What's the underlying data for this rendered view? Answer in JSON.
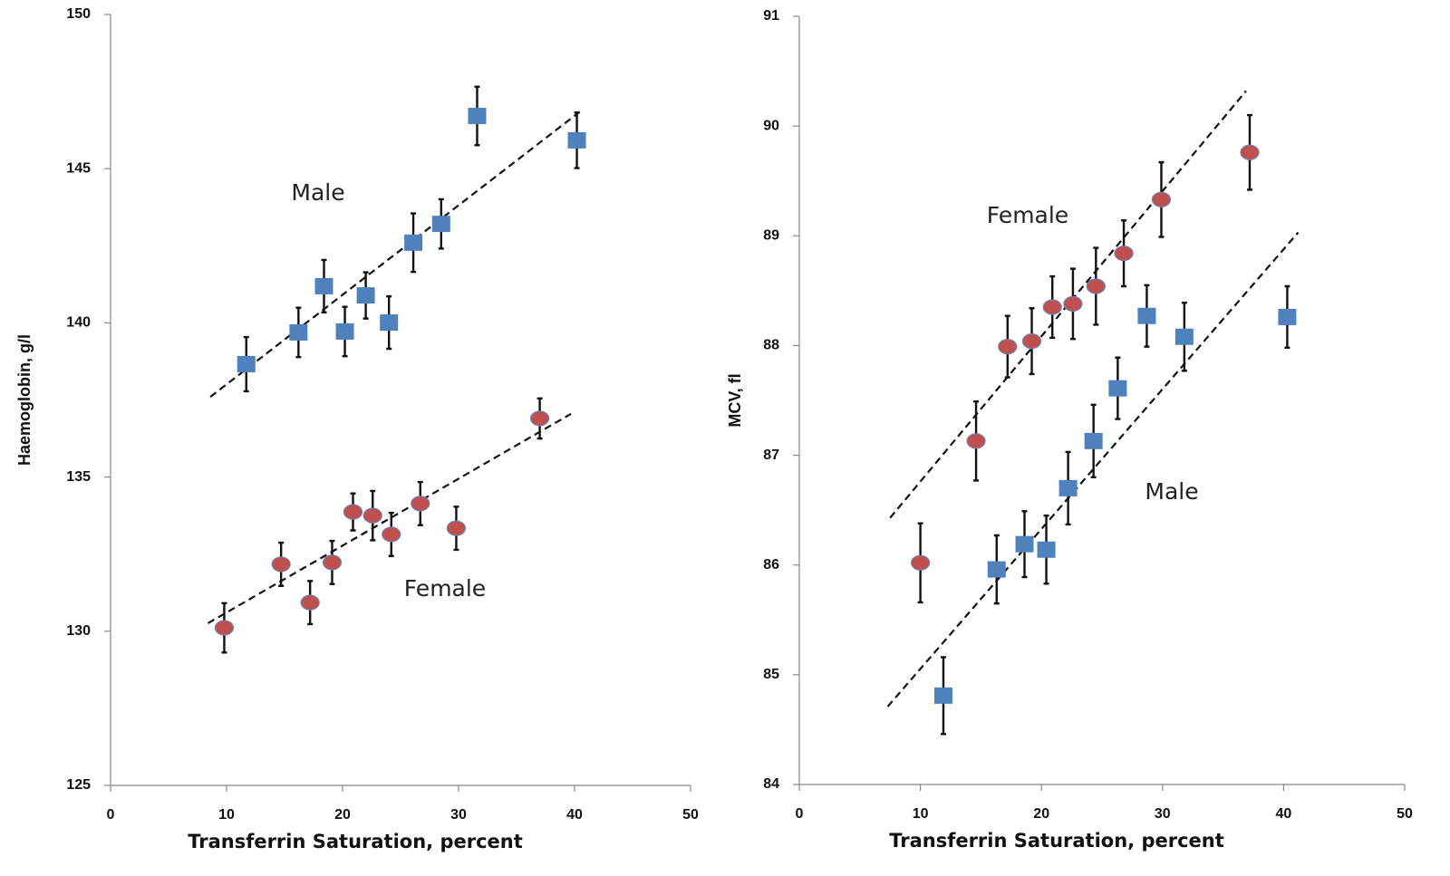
{
  "chart_data": [
    {
      "type": "scatter",
      "x_label": "Transferrin Saturation,  percent",
      "y_label": "Haemoglobin, g/l",
      "xlim": [
        0,
        50
      ],
      "xticks": [
        0,
        10,
        20,
        30,
        40,
        50
      ],
      "ylim": [
        125,
        150
      ],
      "yticks": [
        125,
        130,
        135,
        140,
        145,
        150
      ],
      "series": [
        {
          "name": "Male",
          "color": "#4f81bd",
          "marker": "square",
          "x": [
            11.7,
            16.2,
            18.4,
            20.2,
            22.0,
            24.0,
            26.1,
            28.5,
            31.6,
            40.2
          ],
          "values": [
            138.66,
            139.69,
            141.19,
            139.72,
            140.89,
            140.01,
            142.6,
            143.21,
            146.71,
            145.92
          ],
          "errors": [
            0.88,
            0.8,
            0.85,
            0.8,
            0.75,
            0.85,
            0.95,
            0.8,
            0.95,
            0.9
          ],
          "trend_x": [
            8.6,
            40.5
          ],
          "trend_values": [
            137.6,
            146.86
          ]
        },
        {
          "name": "Female",
          "color": "#c0504d",
          "marker": "circle",
          "x": [
            9.8,
            14.7,
            17.2,
            19.1,
            20.9,
            22.6,
            24.2,
            26.7,
            29.8,
            37.0
          ],
          "values": [
            130.11,
            132.17,
            130.93,
            132.23,
            133.87,
            133.75,
            133.14,
            134.14,
            133.34,
            136.9
          ],
          "errors": [
            0.8,
            0.7,
            0.7,
            0.7,
            0.6,
            0.8,
            0.7,
            0.7,
            0.7,
            0.65
          ],
          "trend_x": [
            8.4,
            39.7
          ],
          "trend_values": [
            130.26,
            137.05
          ]
        }
      ]
    },
    {
      "type": "scatter",
      "x_label": "Transferrin Saturation,  percent",
      "y_label": "MCV, fl",
      "xlim": [
        0,
        50
      ],
      "xticks": [
        0,
        10,
        20,
        30,
        40,
        50
      ],
      "ylim": [
        84,
        91
      ],
      "yticks": [
        84,
        85,
        86,
        87,
        88,
        89,
        90,
        91
      ],
      "series": [
        {
          "name": "Female",
          "color": "#c0504d",
          "marker": "circle",
          "x": [
            10.0,
            14.6,
            17.2,
            19.2,
            20.9,
            22.6,
            24.5,
            26.8,
            29.9,
            37.2
          ],
          "values": [
            86.02,
            87.13,
            87.99,
            88.04,
            88.35,
            88.38,
            88.54,
            88.84,
            89.33,
            89.76
          ],
          "errors": [
            0.36,
            0.36,
            0.28,
            0.3,
            0.28,
            0.32,
            0.35,
            0.3,
            0.34,
            0.34
          ],
          "trend_x": [
            7.5,
            36.9
          ],
          "trend_values": [
            86.43,
            90.32
          ]
        },
        {
          "name": "Male",
          "color": "#4f81bd",
          "marker": "square",
          "x": [
            11.9,
            16.3,
            18.6,
            20.4,
            22.2,
            24.3,
            26.3,
            28.7,
            31.8,
            40.3
          ],
          "values": [
            84.81,
            85.96,
            86.19,
            86.14,
            86.7,
            87.13,
            87.61,
            88.27,
            88.08,
            88.26
          ],
          "errors": [
            0.35,
            0.31,
            0.3,
            0.31,
            0.33,
            0.33,
            0.28,
            0.28,
            0.31,
            0.28
          ],
          "trend_x": [
            7.3,
            41.2
          ],
          "trend_values": [
            84.71,
            89.03
          ]
        }
      ]
    }
  ]
}
